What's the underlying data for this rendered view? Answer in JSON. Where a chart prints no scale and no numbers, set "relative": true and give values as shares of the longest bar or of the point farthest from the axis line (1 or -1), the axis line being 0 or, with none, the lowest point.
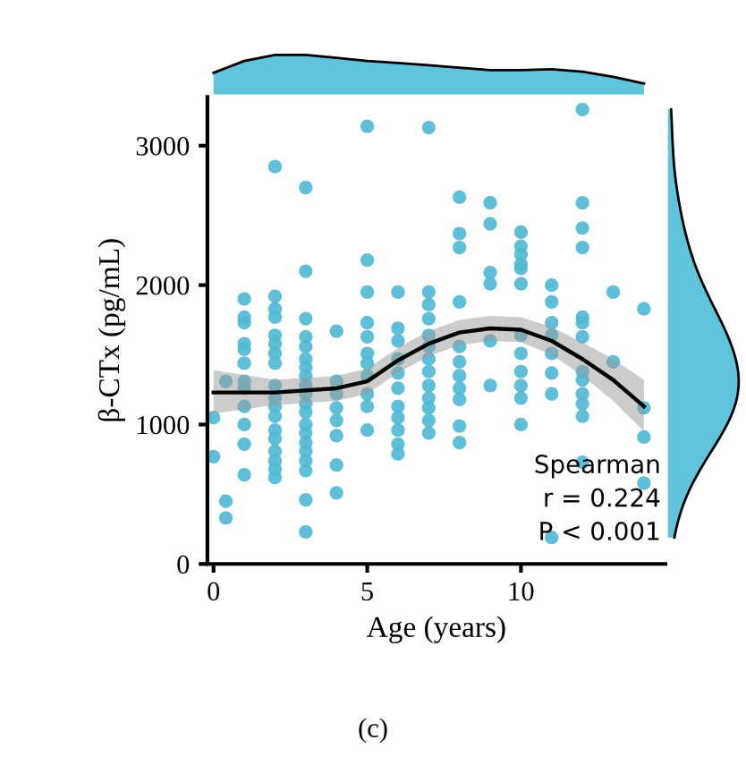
{
  "chart_data": [
    {
      "type": "scatter",
      "xlabel": "Age (years)",
      "ylabel": "β-CTx (pg/mL)",
      "xlim": [
        -0.2,
        14.7
      ],
      "xticks": [
        0,
        5,
        10
      ],
      "ylim": [
        0,
        3350
      ],
      "yticks": [
        0,
        1000,
        2000,
        3000
      ],
      "grid": false,
      "series": [
        {
          "color": "#4fb8d4",
          "marker": "circle",
          "x": [
            0,
            0,
            0.4,
            0.4,
            0.4,
            1,
            1,
            1,
            1,
            1,
            1,
            1,
            1,
            1,
            1,
            1,
            1,
            2,
            2,
            2,
            2,
            2,
            2,
            2,
            2,
            2,
            2,
            2,
            2,
            2,
            2,
            2,
            2,
            2,
            2,
            3,
            3,
            3,
            3,
            3,
            3,
            3,
            3,
            3,
            3,
            3,
            3,
            3,
            3,
            3,
            3,
            3,
            3,
            3,
            3,
            4,
            4,
            4,
            4,
            4,
            4,
            4,
            4,
            5,
            5,
            5,
            5,
            5,
            5,
            5,
            5,
            5,
            5,
            5,
            6,
            6,
            6,
            6,
            6,
            6,
            6,
            6,
            6,
            6,
            6,
            7,
            7,
            7,
            7,
            7,
            7,
            7,
            7,
            7,
            7,
            7,
            7,
            7,
            8,
            8,
            8,
            8,
            8,
            8,
            8,
            8,
            8,
            8,
            8,
            9,
            9,
            9,
            9,
            9,
            9,
            10,
            10,
            10,
            10,
            10,
            10,
            10,
            10,
            10,
            10,
            10,
            10,
            11,
            11,
            11,
            11,
            11,
            11,
            11,
            11,
            12,
            12,
            12,
            12,
            12,
            12,
            12,
            12,
            12,
            12,
            12,
            12,
            12,
            13,
            13,
            14,
            14,
            14,
            14
          ],
          "values": [
            1050,
            770,
            450,
            330,
            1310,
            1900,
            1770,
            1730,
            1580,
            1540,
            1440,
            1310,
            1260,
            1130,
            1000,
            860,
            640,
            2850,
            1920,
            1830,
            1770,
            1640,
            1580,
            1510,
            1440,
            1280,
            1190,
            1130,
            1060,
            960,
            900,
            810,
            740,
            680,
            620,
            2700,
            2100,
            1760,
            1630,
            1560,
            1470,
            1410,
            1350,
            1280,
            1220,
            1150,
            1090,
            1000,
            940,
            870,
            810,
            740,
            670,
            460,
            230,
            1670,
            1310,
            1220,
            1120,
            1030,
            920,
            710,
            510,
            3140,
            2180,
            1950,
            1730,
            1630,
            1510,
            1440,
            1350,
            1220,
            1130,
            960,
            1950,
            1690,
            1600,
            1470,
            1370,
            1260,
            1130,
            1050,
            960,
            860,
            790,
            3130,
            1950,
            1860,
            1760,
            1640,
            1560,
            1470,
            1380,
            1280,
            1190,
            1120,
            1030,
            940,
            2630,
            2370,
            2270,
            1880,
            1560,
            1450,
            1350,
            1260,
            1180,
            990,
            870,
            2590,
            2440,
            2090,
            2010,
            1600,
            1280,
            2380,
            2280,
            2220,
            2150,
            2120,
            2010,
            1640,
            1510,
            1380,
            1280,
            1190,
            1000,
            2000,
            1880,
            1730,
            1640,
            1510,
            1370,
            1220,
            190,
            3260,
            2590,
            2410,
            2270,
            1770,
            1730,
            1630,
            1380,
            1320,
            1220,
            1150,
            1060,
            730,
            1950,
            1450,
            1830,
            1120,
            910,
            580
          ]
        },
        {
          "type": "line",
          "color": "#000000",
          "x": [
            0,
            2,
            4,
            5,
            6,
            7,
            8,
            9,
            10,
            11,
            12,
            13,
            14
          ],
          "values": [
            1230,
            1230,
            1260,
            1310,
            1460,
            1580,
            1660,
            1690,
            1680,
            1600,
            1470,
            1320,
            1130
          ],
          "lower": [
            1080,
            1140,
            1170,
            1220,
            1370,
            1490,
            1570,
            1600,
            1590,
            1500,
            1350,
            1170,
            950
          ],
          "upper": [
            1390,
            1320,
            1350,
            1400,
            1550,
            1670,
            1750,
            1780,
            1770,
            1700,
            1590,
            1470,
            1320
          ]
        }
      ],
      "annotations": [
        "Spearman\nr = 0.224\nP < 0.001",
        "(c)"
      ]
    },
    {
      "type": "area",
      "relative": true,
      "tick_labels": false,
      "categories": [
        null,
        null,
        null,
        null,
        null,
        null,
        null,
        null,
        null,
        null,
        null,
        null,
        null,
        null,
        null
      ],
      "series": [
        {
          "color": "#5fc4dc",
          "values": [
            0.55,
            0.85,
            1.0,
            1.0,
            0.93,
            0.85,
            0.8,
            0.74,
            0.68,
            0.62,
            0.62,
            0.64,
            0.58,
            0.45,
            0.28
          ]
        }
      ]
    }
  ]
}
